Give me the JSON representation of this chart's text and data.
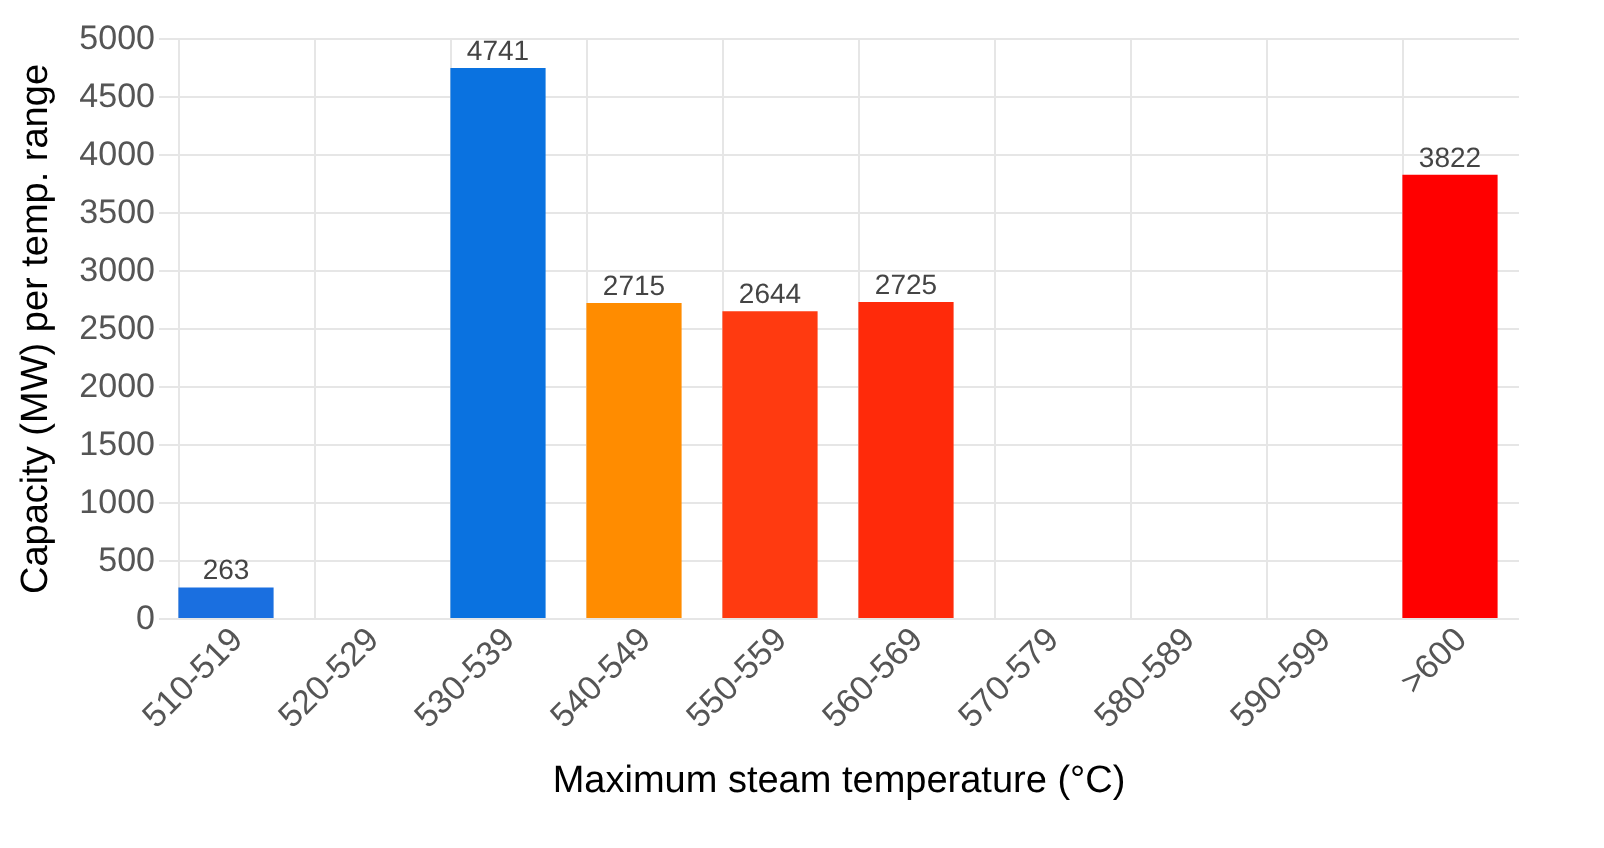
{
  "chart_data": {
    "type": "bar",
    "xlabel": "Maximum steam temperature (°C)",
    "ylabel": "Capacity (MW) per temp. range",
    "categories": [
      "510-519",
      "520-529",
      "530-539",
      "540-549",
      "550-559",
      "560-569",
      "570-579",
      "580-589",
      "590-599",
      ">600"
    ],
    "values": [
      263,
      null,
      4741,
      2715,
      2644,
      2725,
      null,
      null,
      null,
      3822
    ],
    "colors": [
      "#1a6fe0",
      "#1a6fe0",
      "#0a72e0",
      "#ff8c00",
      "#ff3a10",
      "#ff2a0a",
      "#ff2a0a",
      "#ff2a0a",
      "#ff2a0a",
      "#ff0000"
    ],
    "ylim": [
      0,
      5000
    ],
    "yticks": [
      0,
      500,
      1000,
      1500,
      2000,
      2500,
      3000,
      3500,
      4000,
      4500,
      5000
    ],
    "grid": true,
    "data_labels": true
  }
}
